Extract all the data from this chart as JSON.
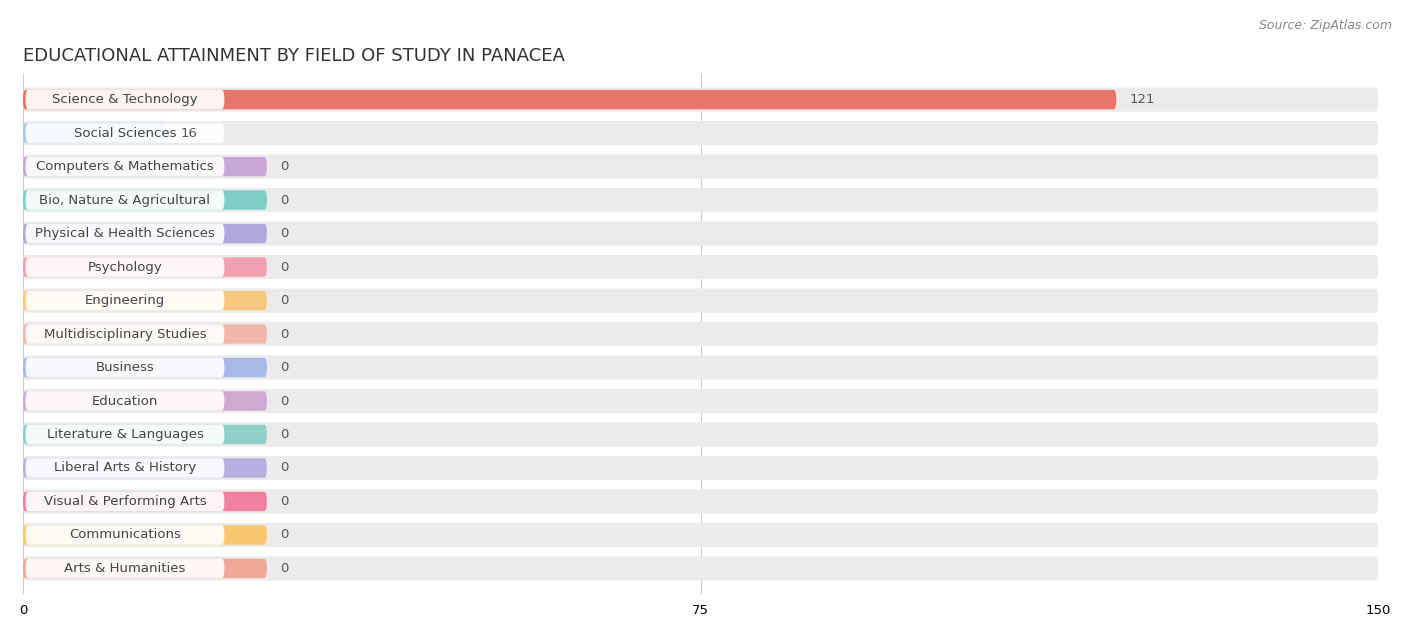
{
  "title": "EDUCATIONAL ATTAINMENT BY FIELD OF STUDY IN PANACEA",
  "source": "Source: ZipAtlas.com",
  "categories": [
    "Science & Technology",
    "Social Sciences",
    "Computers & Mathematics",
    "Bio, Nature & Agricultural",
    "Physical & Health Sciences",
    "Psychology",
    "Engineering",
    "Multidisciplinary Studies",
    "Business",
    "Education",
    "Literature & Languages",
    "Liberal Arts & History",
    "Visual & Performing Arts",
    "Communications",
    "Arts & Humanities"
  ],
  "values": [
    121,
    16,
    0,
    0,
    0,
    0,
    0,
    0,
    0,
    0,
    0,
    0,
    0,
    0,
    0
  ],
  "bar_colors": [
    "#E8756A",
    "#A8C8E8",
    "#C8A8D8",
    "#7DCEC8",
    "#B0A8D8",
    "#F0A0B0",
    "#F8C880",
    "#F0B8A8",
    "#A8B8E8",
    "#D0A8D0",
    "#90D0C8",
    "#B8B0E0",
    "#F080A0",
    "#F8C870",
    "#F0A898"
  ],
  "xlim": [
    0,
    150
  ],
  "xticks": [
    0,
    75,
    150
  ],
  "background_color": "#ffffff",
  "bar_background_color": "#ebebeb",
  "zero_bar_width": 27,
  "title_fontsize": 13,
  "label_fontsize": 9.5,
  "value_fontsize": 9.5,
  "source_fontsize": 9
}
